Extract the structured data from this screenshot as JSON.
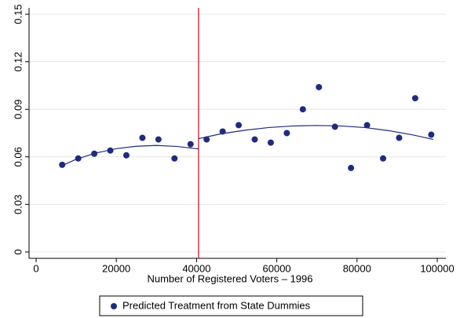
{
  "chart_data": {
    "type": "scatter",
    "xlabel": "Number of Registered Voters – 1996",
    "xlim": [
      -1760,
      102150
    ],
    "xticks": [
      0,
      20000,
      40000,
      60000,
      80000,
      100000
    ],
    "ylim": [
      -0.004,
      0.154
    ],
    "yticks": [
      0,
      0.03,
      0.06,
      0.09,
      0.12,
      0.15
    ],
    "grid": true,
    "legend": "bottom",
    "series": [
      {
        "name": "Predicted Treatment from State Dummies",
        "color": "#1f2a80",
        "x": [
          6500,
          10500,
          14500,
          18500,
          22500,
          26500,
          30500,
          34500,
          38500,
          42500,
          46500,
          50500,
          54500,
          58500,
          62500,
          66500,
          70500,
          74500,
          78500,
          82500,
          86500,
          90500,
          94500,
          98500
        ],
        "values": [
          0.055,
          0.059,
          0.062,
          0.064,
          0.061,
          0.072,
          0.071,
          0.059,
          0.068,
          0.071,
          0.076,
          0.08,
          0.071,
          0.069,
          0.075,
          0.09,
          0.104,
          0.079,
          0.053,
          0.08,
          0.059,
          0.072,
          0.097,
          0.074
        ]
      }
    ],
    "fits": [
      {
        "color": "#1f2a80",
        "x": [
          6000,
          10000,
          15000,
          20000,
          25000,
          30000,
          35000,
          40500
        ],
        "values": [
          0.054,
          0.0585,
          0.0625,
          0.0652,
          0.0667,
          0.0672,
          0.0666,
          0.065
        ]
      },
      {
        "color": "#1f2a80",
        "x": [
          40500,
          46000,
          52000,
          58000,
          64000,
          70000,
          76000,
          82000,
          88000,
          94000,
          99000
        ],
        "values": [
          0.0715,
          0.0745,
          0.0768,
          0.0785,
          0.0795,
          0.0798,
          0.0795,
          0.0785,
          0.0765,
          0.0738,
          0.071
        ]
      }
    ],
    "cutoff": {
      "x": 40500,
      "color": "#d0021b"
    }
  }
}
